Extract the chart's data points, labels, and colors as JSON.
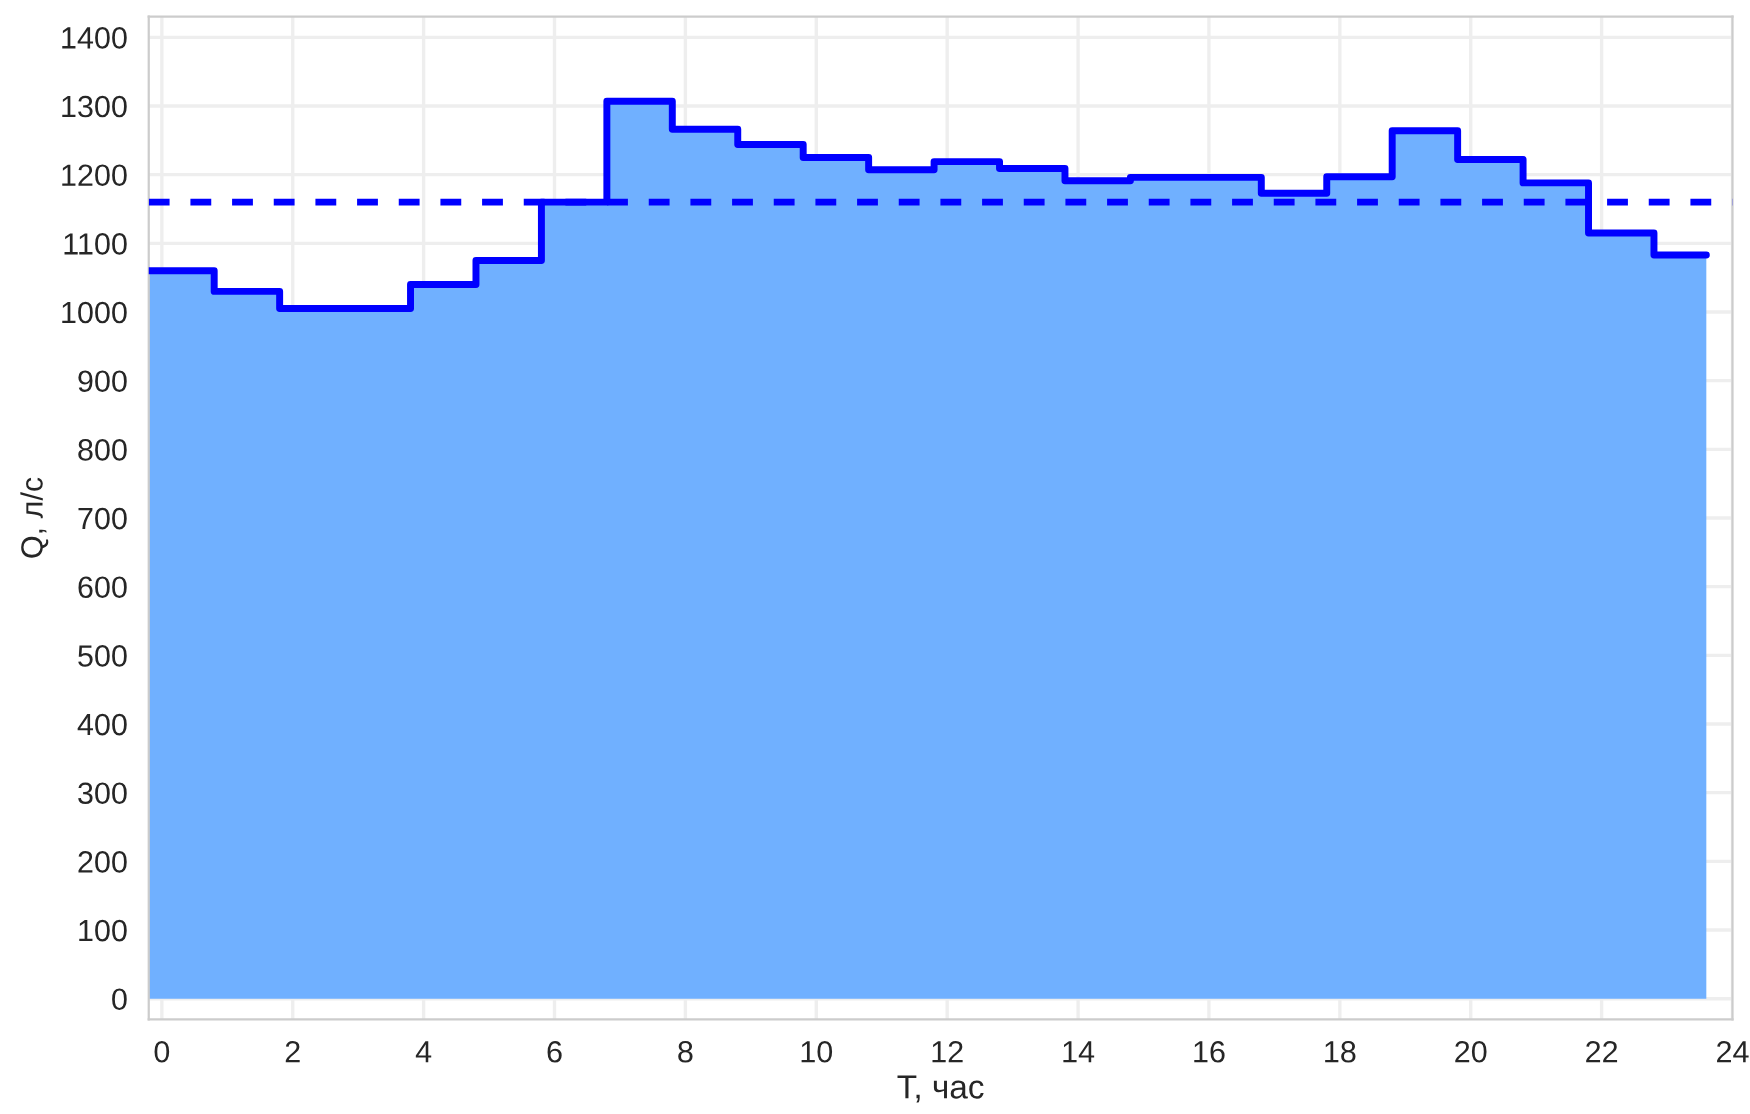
{
  "chart_data": {
    "type": "step",
    "xlabel": "T, час",
    "ylabel": "Q, л/с",
    "x": [
      -0.2,
      0.8,
      1.8,
      2.8,
      3.8,
      4.8,
      5.8,
      6.8,
      7.8,
      8.8,
      9.8,
      10.8,
      11.8,
      12.8,
      13.8,
      14.8,
      15.8,
      16.8,
      17.8,
      18.8,
      19.8,
      20.8,
      21.8,
      22.8,
      23.6
    ],
    "series": [
      {
        "type": "area",
        "color": "#70b0ff",
        "values": [
          1060,
          1030,
          1005,
          1005,
          1040,
          1075,
          1160,
          1307,
          1266,
          1244,
          1225,
          1207,
          1219,
          1209,
          1191,
          1196,
          1196,
          1173,
          1197,
          1264,
          1222,
          1188,
          1115,
          1083,
          1083
        ]
      },
      {
        "type": "step",
        "color": "#0000ff",
        "values": [
          1060,
          1030,
          1005,
          1005,
          1040,
          1075,
          1160,
          1307,
          1266,
          1244,
          1225,
          1207,
          1219,
          1209,
          1191,
          1196,
          1196,
          1173,
          1197,
          1264,
          1222,
          1188,
          1115,
          1083,
          1083
        ]
      }
    ],
    "ref_lines": [
      {
        "axis": "y",
        "value": 1160,
        "color": "#0000ff",
        "line_style": "dashed"
      }
    ],
    "xlim": [
      -0.2,
      24
    ],
    "ylim": [
      -30,
      1430
    ],
    "xticks": [
      0,
      2,
      4,
      6,
      8,
      10,
      12,
      14,
      16,
      18,
      20,
      22,
      24
    ],
    "yticks": [
      0,
      100,
      200,
      300,
      400,
      500,
      600,
      700,
      800,
      900,
      1000,
      1100,
      1200,
      1300,
      1400
    ],
    "grid": true,
    "legend": false
  }
}
